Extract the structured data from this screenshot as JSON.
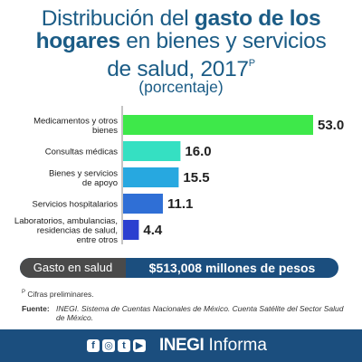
{
  "header": {
    "title_line1_normal": "Distribución del ",
    "title_line1_bold": "gasto de los",
    "title_line2_bold": "hogares",
    "title_line2_normal": " en bienes y servicios",
    "title_line3": "de salud, 2017",
    "title_superscript": "P",
    "subtitle": "(porcentaje)"
  },
  "chart_data": {
    "type": "bar",
    "orientation": "horizontal",
    "categories": [
      [
        "Medicamentos y otros",
        "bienes"
      ],
      [
        "Consultas médicas"
      ],
      [
        "Bienes y servicios",
        "de apoyo"
      ],
      [
        "Servicios hospitalarios"
      ],
      [
        "Laboratorios, ambulancias,",
        "residencias de salud,",
        "entre otros"
      ]
    ],
    "values": [
      53.0,
      16.0,
      15.5,
      11.1,
      4.4
    ],
    "value_labels": [
      "53.0",
      "16.0",
      "15.5",
      "11.1",
      "4.4"
    ],
    "colors": [
      "#3ee84a",
      "#35e0c2",
      "#27a8e0",
      "#2f6fd6",
      "#2b3fd0"
    ],
    "xlim": [
      0,
      53.0
    ],
    "grid": false,
    "legend": "none"
  },
  "summary": {
    "label": "Gasto en salud",
    "value": "$513,008 millones de pesos"
  },
  "note": {
    "marker": "P",
    "text": " Cifras preliminares."
  },
  "source": {
    "key": "Fuente:",
    "text": "INEGI. Sistema de Cuentas Nacionales de México. Cuenta Satélite del Sector Salud de México."
  },
  "footer": {
    "social_icons": [
      "facebook-icon",
      "instagram-icon",
      "twitter-icon",
      "youtube-icon"
    ],
    "brand_bold": "INEGI",
    "brand_normal": " Informa"
  }
}
